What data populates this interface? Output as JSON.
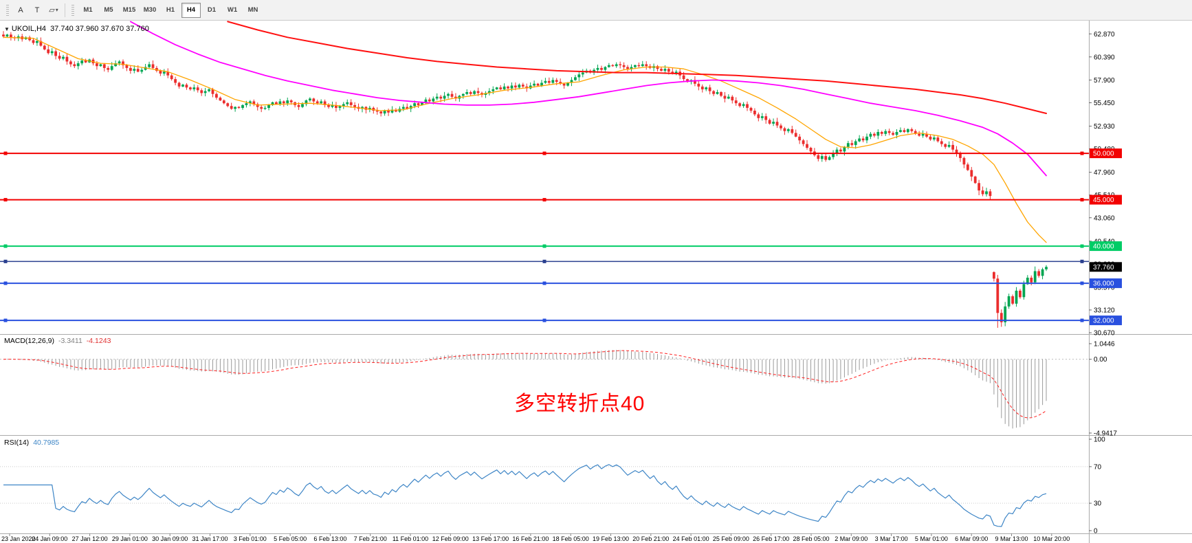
{
  "toolbar": {
    "tools": [
      {
        "name": "annotation-tool",
        "glyph": "A"
      },
      {
        "name": "text-tool",
        "glyph": "T"
      },
      {
        "name": "shapes-tool",
        "glyph": "▱"
      },
      {
        "name": "shapes-caret",
        "glyph": "▾"
      }
    ],
    "timeframes": [
      "M1",
      "M5",
      "M15",
      "M30",
      "H1",
      "H4",
      "D1",
      "W1",
      "MN"
    ],
    "active_timeframe": "H4"
  },
  "legend": {
    "dropdown_glyph": "▼",
    "symbol": "UKOIL,H4",
    "ohlc": "37.740 37.960 37.670 37.760"
  },
  "colors": {
    "bull": "#00a551",
    "bear": "#eb2d2d",
    "axis_text": "#000000",
    "divider": "#aaaaaa"
  },
  "price_axis": {
    "labels": [
      "62.870",
      "60.390",
      "57.900",
      "55.450",
      "52.930",
      "50.480",
      "47.960",
      "45.510",
      "43.060",
      "40.540",
      "38.090",
      "35.570",
      "33.120",
      "30.670"
    ]
  },
  "time_axis": {
    "labels": [
      "23 Jan 2020",
      "24 Jan 09:00",
      "27 Jan 12:00",
      "29 Jan 01:00",
      "30 Jan 09:00",
      "31 Jan 17:00",
      "3 Feb 01:00",
      "5 Feb 05:00",
      "6 Feb 13:00",
      "7 Feb 21:00",
      "11 Feb 01:00",
      "12 Feb 09:00",
      "13 Feb 17:00",
      "16 Feb 21:00",
      "18 Feb 05:00",
      "19 Feb 13:00",
      "20 Feb 21:00",
      "24 Feb 01:00",
      "25 Feb 09:00",
      "26 Feb 17:00",
      "28 Feb 05:00",
      "2 Mar 09:00",
      "3 Mar 17:00",
      "5 Mar 01:00",
      "6 Mar 09:00",
      "9 Mar 13:00",
      "10 Mar 20:00"
    ]
  },
  "hlines": [
    {
      "price": 50.0,
      "label": "50.000",
      "color": "#f20000",
      "width": 2
    },
    {
      "price": 45.0,
      "label": "45.000",
      "color": "#f20000",
      "width": 2
    },
    {
      "price": 40.0,
      "label": "40.000",
      "color": "#00cc66",
      "width": 2
    },
    {
      "price": 38.35,
      "label": "",
      "color": "#2a3f8f",
      "width": 1.5
    },
    {
      "price": 36.0,
      "label": "36.000",
      "color": "#2950df",
      "width": 2
    },
    {
      "price": 32.0,
      "label": "32.000",
      "color": "#2950df",
      "width": 2
    }
  ],
  "current_price": {
    "value": 37.76,
    "label": "37.760",
    "box_color": "#000000",
    "text_color": "#ffffff"
  },
  "indicators": {
    "macd": {
      "name": "MACD(12,26,9)",
      "value_main": "-3.3411",
      "value_signal": "-4.1243",
      "scale_top": "1.0446",
      "scale_zero": "0.00",
      "scale_bottom": "-4.9417",
      "range": [
        -4.9417,
        1.0446
      ],
      "histogram_color": "#9a9a9a",
      "signal_color": "#ff2020",
      "annotation": {
        "text": "多空转折点40",
        "color": "#ff0000"
      }
    },
    "rsi": {
      "name": "RSI(14)",
      "value": "40.7985",
      "scale_labels": [
        "100",
        "70",
        "30",
        "0"
      ],
      "levels": [
        70,
        30
      ],
      "color": "#3d85c6"
    }
  },
  "chart_data": {
    "type": "candlestick",
    "symbol": "UKOIL",
    "timeframe": "H4",
    "ohlc_display": {
      "open": "37.740",
      "high": "37.960",
      "low": "37.670",
      "close": "37.760"
    },
    "y_range": [
      30.6,
      64.3
    ],
    "closes": [
      62.6,
      62.8,
      62.5,
      62.4,
      62.6,
      62.3,
      62.5,
      62.2,
      61.9,
      62.1,
      61.6,
      61.2,
      60.8,
      61.0,
      60.5,
      60.2,
      60.4,
      59.9,
      59.6,
      59.4,
      59.7,
      60.0,
      59.8,
      60.1,
      59.7,
      59.4,
      59.6,
      59.2,
      59.0,
      59.4,
      59.7,
      59.9,
      59.5,
      59.2,
      58.9,
      59.1,
      58.8,
      59.0,
      59.3,
      59.6,
      59.2,
      58.9,
      58.6,
      58.8,
      58.4,
      58.0,
      57.6,
      57.2,
      57.4,
      57.1,
      56.9,
      57.1,
      56.8,
      56.5,
      56.7,
      56.9,
      56.4,
      56.0,
      55.7,
      55.4,
      55.1,
      54.8,
      55.0,
      54.9,
      55.2,
      55.4,
      55.6,
      55.3,
      55.0,
      54.8,
      54.9,
      55.2,
      55.5,
      55.3,
      55.6,
      55.4,
      55.7,
      55.5,
      55.2,
      55.0,
      55.3,
      55.7,
      55.9,
      55.6,
      55.4,
      55.6,
      55.2,
      55.0,
      55.2,
      54.9,
      55.1,
      55.3,
      55.5,
      55.2,
      55.0,
      54.8,
      55.0,
      54.7,
      54.9,
      54.6,
      54.5,
      54.3,
      54.6,
      54.4,
      54.7,
      54.5,
      54.8,
      55.0,
      54.8,
      55.1,
      55.4,
      55.2,
      55.5,
      55.8,
      55.6,
      55.9,
      56.1,
      55.9,
      56.2,
      56.4,
      56.1,
      55.9,
      56.2,
      56.4,
      56.6,
      56.4,
      56.7,
      56.5,
      56.3,
      56.5,
      56.7,
      56.9,
      57.1,
      56.9,
      57.2,
      57.0,
      57.3,
      57.1,
      57.4,
      57.2,
      57.0,
      57.3,
      57.5,
      57.3,
      57.6,
      57.8,
      57.6,
      57.9,
      57.7,
      57.5,
      57.3,
      57.6,
      57.9,
      58.2,
      58.5,
      58.7,
      58.9,
      58.7,
      59.0,
      59.2,
      59.0,
      59.3,
      59.5,
      59.4,
      59.6,
      59.5,
      59.3,
      59.1,
      59.3,
      59.5,
      59.4,
      59.6,
      59.4,
      59.2,
      59.4,
      59.1,
      58.9,
      59.1,
      58.8,
      58.6,
      58.8,
      58.4,
      58.0,
      57.7,
      57.9,
      57.5,
      57.2,
      56.9,
      57.1,
      56.7,
      56.4,
      56.6,
      56.2,
      55.9,
      56.1,
      55.7,
      55.4,
      55.1,
      55.3,
      54.9,
      54.6,
      54.2,
      53.8,
      54.0,
      53.6,
      53.2,
      53.4,
      53.0,
      52.7,
      52.4,
      52.6,
      52.2,
      51.8,
      51.4,
      51.0,
      50.6,
      50.2,
      49.8,
      49.4,
      49.7,
      49.3,
      49.6,
      50.0,
      50.4,
      50.2,
      50.7,
      51.1,
      50.9,
      51.3,
      51.6,
      51.4,
      51.8,
      52.1,
      51.9,
      52.3,
      52.1,
      52.4,
      52.2,
      52.0,
      52.3,
      52.5,
      52.3,
      52.6,
      52.4,
      52.1,
      51.9,
      52.1,
      51.8,
      51.5,
      51.7,
      51.3,
      51.0,
      50.7,
      50.9,
      50.4,
      50.0,
      49.5,
      48.8,
      48.2,
      47.5,
      46.8,
      46.0,
      45.6,
      45.9,
      45.4,
      36.5,
      32.8,
      31.8,
      33.5,
      34.6,
      33.8,
      35.2,
      34.5,
      35.9,
      36.6,
      36.1,
      37.3,
      36.8,
      37.5,
      37.76
    ],
    "gap_open_overrides": {
      "265": 37.2
    },
    "low_overrides": {
      "266": 31.2,
      "267": 31.3
    },
    "ma_lines": [
      {
        "name": "fast",
        "color": "#ffa500",
        "width": 1.3,
        "points": [
          [
            0,
            62.5
          ],
          [
            8,
            62.4
          ],
          [
            14,
            61.3
          ],
          [
            20,
            60.2
          ],
          [
            26,
            59.7
          ],
          [
            32,
            59.6
          ],
          [
            38,
            59.2
          ],
          [
            44,
            58.8
          ],
          [
            50,
            57.9
          ],
          [
            56,
            56.9
          ],
          [
            62,
            55.8
          ],
          [
            68,
            55.2
          ],
          [
            75,
            55.3
          ],
          [
            82,
            55.4
          ],
          [
            88,
            55.2
          ],
          [
            95,
            54.9
          ],
          [
            101,
            54.6
          ],
          [
            107,
            54.7
          ],
          [
            113,
            55.3
          ],
          [
            120,
            55.9
          ],
          [
            127,
            56.3
          ],
          [
            134,
            56.8
          ],
          [
            141,
            57.1
          ],
          [
            148,
            57.5
          ],
          [
            154,
            57.7
          ],
          [
            160,
            58.4
          ],
          [
            166,
            59.0
          ],
          [
            172,
            59.3
          ],
          [
            177,
            59.3
          ],
          [
            182,
            59.1
          ],
          [
            187,
            58.5
          ],
          [
            192,
            57.8
          ],
          [
            197,
            56.9
          ],
          [
            202,
            56.0
          ],
          [
            207,
            54.9
          ],
          [
            212,
            53.7
          ],
          [
            216,
            52.6
          ],
          [
            220,
            51.5
          ],
          [
            224,
            50.7
          ],
          [
            228,
            50.6
          ],
          [
            232,
            50.9
          ],
          [
            236,
            51.4
          ],
          [
            240,
            51.9
          ],
          [
            245,
            52.2
          ],
          [
            250,
            51.9
          ],
          [
            254,
            51.5
          ],
          [
            258,
            50.8
          ],
          [
            262,
            49.9
          ],
          [
            265,
            48.8
          ],
          [
            268,
            46.8
          ],
          [
            271,
            44.6
          ],
          [
            274,
            42.6
          ],
          [
            277,
            41.2
          ],
          [
            279,
            40.4
          ]
        ]
      },
      {
        "name": "mid",
        "color": "#ff00ff",
        "width": 1.8,
        "points": [
          [
            34,
            64.2
          ],
          [
            40,
            62.9
          ],
          [
            46,
            61.7
          ],
          [
            52,
            60.7
          ],
          [
            58,
            59.8
          ],
          [
            64,
            59.1
          ],
          [
            70,
            58.4
          ],
          [
            76,
            57.8
          ],
          [
            82,
            57.3
          ],
          [
            88,
            56.8
          ],
          [
            94,
            56.4
          ],
          [
            100,
            56.0
          ],
          [
            106,
            55.7
          ],
          [
            112,
            55.5
          ],
          [
            118,
            55.3
          ],
          [
            124,
            55.2
          ],
          [
            130,
            55.2
          ],
          [
            136,
            55.3
          ],
          [
            142,
            55.5
          ],
          [
            148,
            55.8
          ],
          [
            154,
            56.1
          ],
          [
            160,
            56.5
          ],
          [
            166,
            56.9
          ],
          [
            172,
            57.3
          ],
          [
            178,
            57.6
          ],
          [
            184,
            57.8
          ],
          [
            190,
            57.9
          ],
          [
            196,
            57.8
          ],
          [
            202,
            57.6
          ],
          [
            208,
            57.3
          ],
          [
            214,
            56.9
          ],
          [
            220,
            56.4
          ],
          [
            226,
            55.9
          ],
          [
            232,
            55.4
          ],
          [
            238,
            55.0
          ],
          [
            244,
            54.6
          ],
          [
            250,
            54.1
          ],
          [
            256,
            53.5
          ],
          [
            262,
            52.8
          ],
          [
            266,
            52.1
          ],
          [
            270,
            51.1
          ],
          [
            274,
            49.9
          ],
          [
            279,
            47.6
          ]
        ]
      },
      {
        "name": "slow",
        "color": "#ff1010",
        "width": 2,
        "points": [
          [
            60,
            64.2
          ],
          [
            68,
            63.3
          ],
          [
            76,
            62.5
          ],
          [
            84,
            61.9
          ],
          [
            92,
            61.3
          ],
          [
            100,
            60.8
          ],
          [
            108,
            60.3
          ],
          [
            116,
            59.9
          ],
          [
            124,
            59.6
          ],
          [
            132,
            59.3
          ],
          [
            140,
            59.1
          ],
          [
            148,
            58.9
          ],
          [
            156,
            58.8
          ],
          [
            164,
            58.7
          ],
          [
            172,
            58.7
          ],
          [
            180,
            58.6
          ],
          [
            188,
            58.5
          ],
          [
            196,
            58.4
          ],
          [
            204,
            58.2
          ],
          [
            212,
            58.0
          ],
          [
            220,
            57.8
          ],
          [
            228,
            57.5
          ],
          [
            236,
            57.2
          ],
          [
            244,
            56.9
          ],
          [
            250,
            56.6
          ],
          [
            256,
            56.3
          ],
          [
            262,
            55.9
          ],
          [
            268,
            55.4
          ],
          [
            273,
            54.9
          ],
          [
            279,
            54.3
          ]
        ]
      }
    ]
  }
}
